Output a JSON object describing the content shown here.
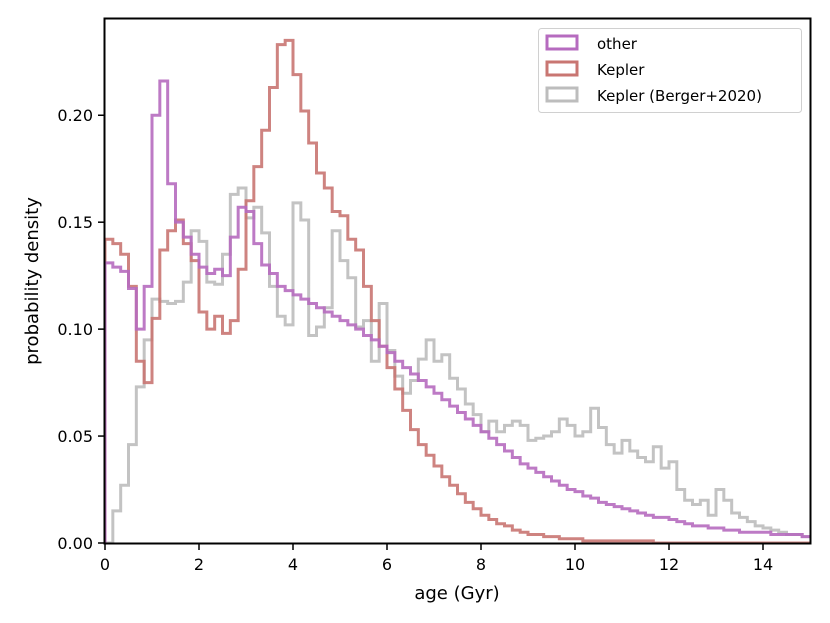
{
  "chart_data": {
    "type": "histogram-step",
    "title": "",
    "xlabel": "age (Gyr)",
    "ylabel": "probability density",
    "xlim": [
      0,
      15
    ],
    "ylim": [
      0,
      0.245
    ],
    "xticks": [
      0,
      2,
      4,
      6,
      8,
      10,
      12,
      14
    ],
    "xtick_labels": [
      "0",
      "2",
      "4",
      "6",
      "8",
      "10",
      "12",
      "14"
    ],
    "yticks": [
      0.0,
      0.05,
      0.1,
      0.15,
      0.2
    ],
    "ytick_labels": [
      "0.00",
      "0.05",
      "0.10",
      "0.15",
      "0.20"
    ],
    "legend_position": "top-right",
    "bin_width": 0.1667,
    "series": [
      {
        "name": "other",
        "color": "#b66bbf",
        "label": "other",
        "values": [
          0.131,
          0.129,
          0.127,
          0.119,
          0.1,
          0.12,
          0.2,
          0.216,
          0.168,
          0.15,
          0.143,
          0.135,
          0.129,
          0.126,
          0.128,
          0.125,
          0.143,
          0.157,
          0.155,
          0.14,
          0.13,
          0.126,
          0.12,
          0.118,
          0.116,
          0.114,
          0.112,
          0.11,
          0.108,
          0.106,
          0.104,
          0.102,
          0.1,
          0.097,
          0.095,
          0.092,
          0.089,
          0.085,
          0.082,
          0.079,
          0.076,
          0.073,
          0.07,
          0.067,
          0.064,
          0.061,
          0.058,
          0.055,
          0.052,
          0.049,
          0.046,
          0.043,
          0.04,
          0.037,
          0.035,
          0.033,
          0.031,
          0.029,
          0.027,
          0.025,
          0.024,
          0.022,
          0.021,
          0.019,
          0.018,
          0.017,
          0.016,
          0.015,
          0.014,
          0.013,
          0.012,
          0.012,
          0.011,
          0.01,
          0.009,
          0.008,
          0.008,
          0.007,
          0.007,
          0.006,
          0.006,
          0.005,
          0.005,
          0.005,
          0.005,
          0.004,
          0.004,
          0.004,
          0.004,
          0.003
        ]
      },
      {
        "name": "Kepler",
        "color": "#c97672",
        "label": "Kepler",
        "values": [
          0.142,
          0.14,
          0.135,
          0.12,
          0.085,
          0.075,
          0.105,
          0.137,
          0.146,
          0.151,
          0.14,
          0.132,
          0.108,
          0.1,
          0.106,
          0.098,
          0.104,
          0.128,
          0.16,
          0.176,
          0.193,
          0.213,
          0.233,
          0.235,
          0.219,
          0.202,
          0.187,
          0.173,
          0.166,
          0.155,
          0.153,
          0.142,
          0.137,
          0.12,
          0.104,
          0.092,
          0.082,
          0.072,
          0.062,
          0.053,
          0.046,
          0.041,
          0.036,
          0.031,
          0.027,
          0.023,
          0.019,
          0.016,
          0.013,
          0.011,
          0.009,
          0.008,
          0.006,
          0.005,
          0.004,
          0.004,
          0.003,
          0.003,
          0.002,
          0.002,
          0.002,
          0.001,
          0.001,
          0.001,
          0.001,
          0.001,
          0.001,
          0.001,
          0.001,
          0.001,
          0.0,
          0.0,
          0.0,
          0.0,
          0.0,
          0.0,
          0.0,
          0.0,
          0.0,
          0.0,
          0.0,
          0.0,
          0.0,
          0.0,
          0.0,
          0.0,
          0.0,
          0.0,
          0.0,
          0.0
        ]
      },
      {
        "name": "Kepler (Berger+2020)",
        "color": "#bdbdbd",
        "label": "Kepler (Berger+2020)",
        "values": [
          0.0,
          0.015,
          0.027,
          0.046,
          0.073,
          0.095,
          0.114,
          0.113,
          0.112,
          0.113,
          0.122,
          0.146,
          0.141,
          0.122,
          0.121,
          0.135,
          0.163,
          0.166,
          0.152,
          0.157,
          0.145,
          0.12,
          0.106,
          0.102,
          0.159,
          0.151,
          0.097,
          0.101,
          0.11,
          0.146,
          0.132,
          0.124,
          0.101,
          0.104,
          0.085,
          0.112,
          0.09,
          0.078,
          0.07,
          0.076,
          0.086,
          0.095,
          0.085,
          0.088,
          0.077,
          0.072,
          0.065,
          0.06,
          0.052,
          0.057,
          0.052,
          0.055,
          0.057,
          0.055,
          0.048,
          0.049,
          0.05,
          0.052,
          0.058,
          0.055,
          0.05,
          0.052,
          0.063,
          0.054,
          0.046,
          0.042,
          0.048,
          0.043,
          0.04,
          0.038,
          0.045,
          0.035,
          0.038,
          0.025,
          0.02,
          0.018,
          0.02,
          0.013,
          0.025,
          0.02,
          0.014,
          0.012,
          0.01,
          0.008,
          0.007,
          0.006,
          0.005,
          0.004,
          0.004,
          0.003
        ]
      }
    ]
  }
}
